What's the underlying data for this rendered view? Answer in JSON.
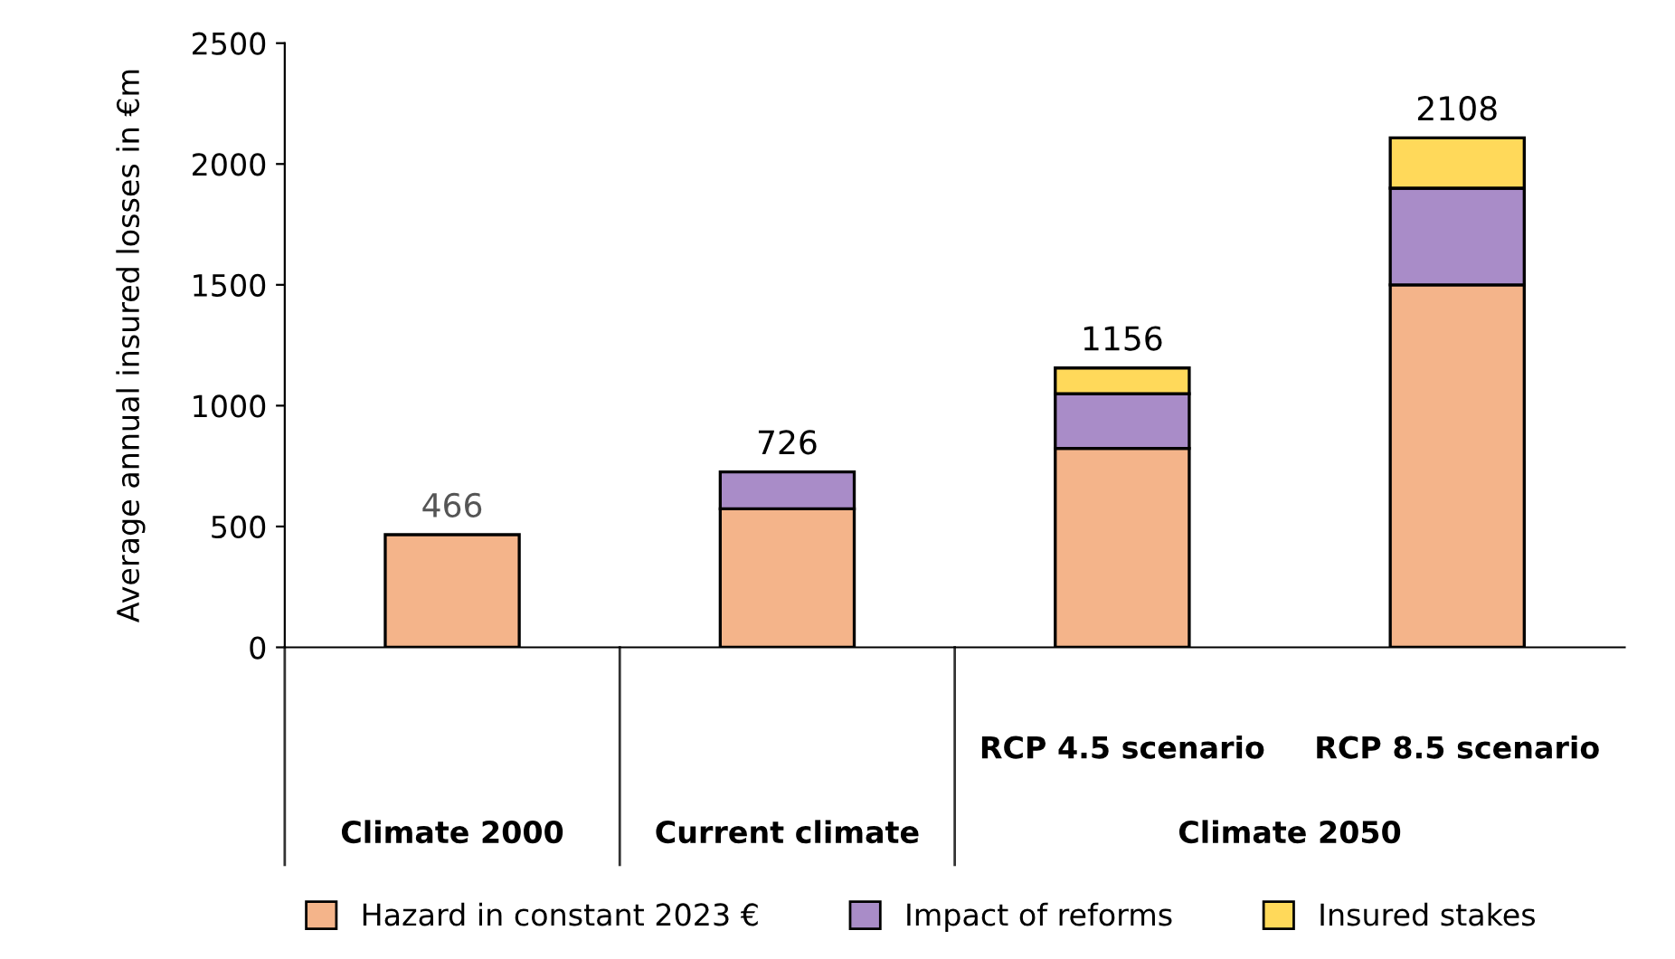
{
  "chart_data": {
    "type": "bar",
    "stacked": true,
    "categories": [
      null,
      null,
      "RCP 4.5 scenario",
      "RCP 8.5 scenario"
    ],
    "series": [
      {
        "name": "Hazard in constant 2023 €",
        "color": "#f4b48a",
        "values": [
          466,
          573,
          823,
          1500
        ]
      },
      {
        "name": "Impact of reforms",
        "color": "#a98cc8",
        "values": [
          null,
          153,
          226,
          400
        ]
      },
      {
        "name": "Insured stakes",
        "color": "#ffd95a",
        "values": [
          null,
          null,
          107,
          208
        ]
      }
    ],
    "totals": [
      "466",
      "726",
      "1156",
      "2108"
    ],
    "ylabel": "Average annual insured losses in €m",
    "ylim": [
      0,
      2500
    ],
    "yticks": [
      0,
      500,
      1000,
      1500,
      2000,
      2500
    ],
    "annotations": [
      "Climate 2000",
      "Current climate",
      "Climate 2050"
    ],
    "grid": false,
    "legend": "bottom"
  }
}
